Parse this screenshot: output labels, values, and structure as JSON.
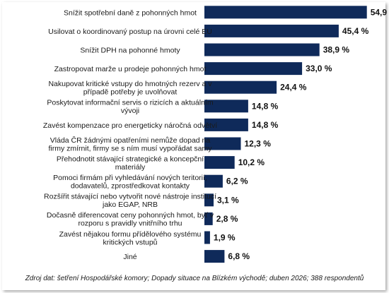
{
  "chart_data": {
    "type": "bar",
    "orientation": "horizontal",
    "categories": [
      "Snížit spotřební daně z pohonných hmot",
      "Usilovat o koordinovaný postup na úrovni celé EU",
      "Snížit DPH na pohonné hmoty",
      "Zastropovat marže u prodeje pohonných hmot",
      "Nakupovat kritické vstupy do hmotných rezerv a v případě potřeby je uvolňovat",
      "Poskytovat informační servis o rizicích a aktuálním vývoji",
      "Zavést kompenzace pro energeticky náročná odvětví",
      "Vláda ČR žádnými opatřeními nemůže dopad na firmy zmírnit, firmy se s ním musí vypořádat samy",
      "Přehodnotit stávající strategické a koncepční materiály",
      "Pomoci firmám při vyhledávání nových teritorií, dodavatelů, zprostředkovat kontakty",
      "Rozšířit stávající nebo vytvořit nové nástroje institucí jako EGAP, NRB",
      "Dočasně diferencovat ceny pohonných hmot, byť v rozporu s pravidly vnitřního trhu",
      "Zavést nějakou formu přídělového systému kritických vstupů",
      "Jiné"
    ],
    "category_lines": [
      [
        "Snížit spotřební daně z pohonných hmot"
      ],
      [
        "Usilovat o koordinovaný postup na úrovni celé EU"
      ],
      [
        "Snížit DPH na pohonné hmoty"
      ],
      [
        "Zastropovat marže u prodeje pohonných hmot"
      ],
      [
        "Nakupovat kritické vstupy do hmotných rezerv a v",
        "případě potřeby je uvolňovat"
      ],
      [
        "Poskytovat informační servis o rizicích a aktuálním",
        "vývoji"
      ],
      [
        "Zavést kompenzace pro energeticky náročná odvětví"
      ],
      [
        "Vláda ČR žádnými opatřeními nemůže dopad na",
        "firmy zmírnit, firmy se s ním musí vypořádat samy"
      ],
      [
        "Přehodnotit stávající strategické a koncepční",
        "materiály"
      ],
      [
        "Pomoci firmám při vyhledávání nových teritorií,",
        "dodavatelů, zprostředkovat kontakty"
      ],
      [
        "Rozšířit stávající nebo vytvořit nové nástroje institucí",
        "jako EGAP, NRB"
      ],
      [
        "Dočasně diferencovat ceny pohonných hmot, byť v",
        "rozporu s pravidly vnitřního trhu"
      ],
      [
        "Zavést nějakou formu přídělového systému",
        "kritických vstupů"
      ],
      [
        "Jiné"
      ]
    ],
    "values": [
      54.9,
      45.4,
      38.9,
      33.0,
      24.4,
      14.8,
      14.8,
      12.3,
      10.2,
      6.2,
      3.1,
      2.8,
      1.9,
      6.8
    ],
    "value_labels": [
      "54,9 %",
      "45,4 %",
      "38,9 %",
      "33,0 %",
      "24,4 %",
      "14,8 %",
      "14,8 %",
      "12,3 %",
      "10,2 %",
      "6,2 %",
      "3,1 %",
      "2,8 %",
      "1,9 %",
      "6,8 %"
    ],
    "xlim": [
      0,
      60
    ],
    "grid": false,
    "legend": "none",
    "bar_color": "#0f2a5a",
    "source": "Zdroj dat: šetření Hospodářské komory; Dopady situace na Blízkém východě; duben 2026; 388 respondentů"
  }
}
